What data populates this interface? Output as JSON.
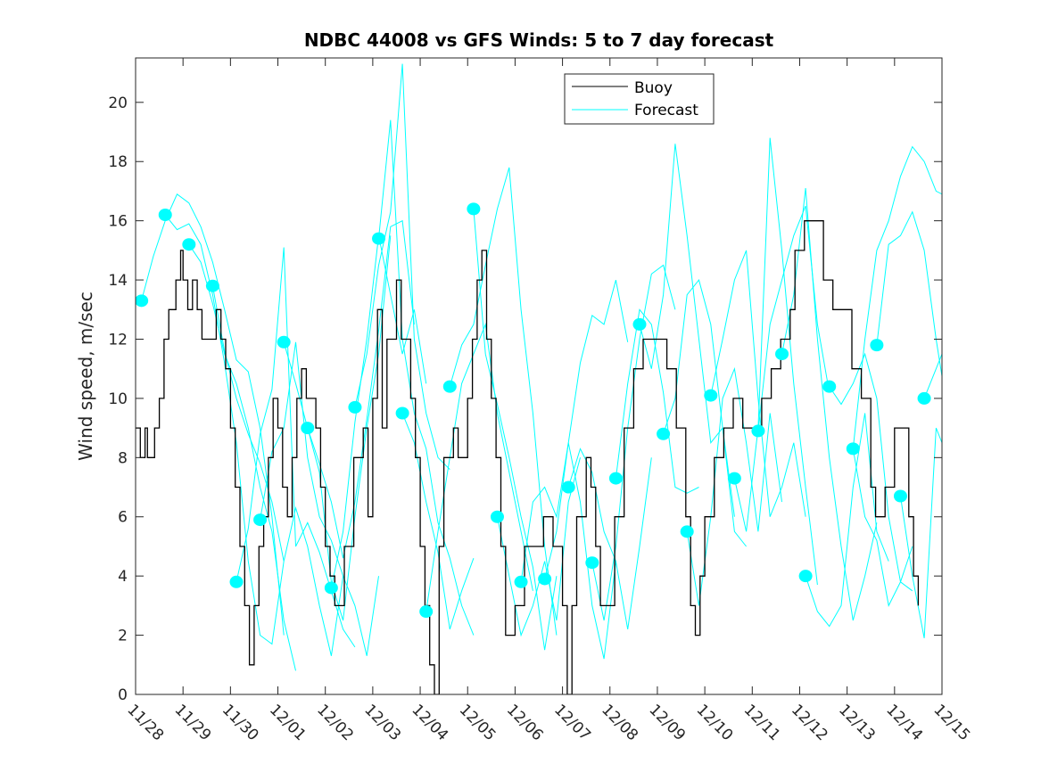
{
  "chart_data": {
    "type": "line",
    "title": "NDBC 44008 vs GFS Winds: 5 to 7 day forecast",
    "xlabel": "",
    "ylabel": "Wind speed, m/sec",
    "x_unit": "days since 11/28",
    "xlim": [
      0,
      17
    ],
    "ylim": [
      0,
      21.5
    ],
    "x_tick_labels": [
      "11/28",
      "11/29",
      "11/30",
      "12/01",
      "12/02",
      "12/03",
      "12/04",
      "12/05",
      "12/06",
      "12/07",
      "12/08",
      "12/09",
      "12/10",
      "12/11",
      "12/12",
      "12/13",
      "12/14",
      "12/15"
    ],
    "y_ticks": [
      0,
      2,
      4,
      6,
      8,
      10,
      12,
      14,
      16,
      18,
      20
    ],
    "grid": false,
    "legend": {
      "placement": "top-center",
      "entries": [
        "Buoy",
        "Forecast"
      ]
    },
    "colors": {
      "buoy": "#000000",
      "forecast": "#00ffff",
      "markers": "#00ffff",
      "axes": "#262626"
    },
    "buoy": {
      "x": [
        0,
        0.1,
        0.2,
        0.25,
        0.4,
        0.5,
        0.6,
        0.7,
        0.85,
        0.95,
        1.0,
        1.1,
        1.2,
        1.3,
        1.4,
        1.5,
        1.6,
        1.7,
        1.8,
        1.9,
        2.0,
        2.1,
        2.2,
        2.3,
        2.4,
        2.5,
        2.6,
        2.7,
        2.8,
        2.9,
        3.0,
        3.1,
        3.2,
        3.3,
        3.4,
        3.5,
        3.6,
        3.8,
        3.9,
        4.0,
        4.1,
        4.2,
        4.4,
        4.6,
        4.8,
        4.9,
        5.0,
        5.1,
        5.2,
        5.3,
        5.5,
        5.6,
        5.8,
        5.9,
        6.0,
        6.1,
        6.2,
        6.3,
        6.4,
        6.5,
        6.7,
        6.8,
        7.0,
        7.1,
        7.2,
        7.3,
        7.4,
        7.5,
        7.6,
        7.7,
        7.8,
        8.0,
        8.2,
        8.4,
        8.6,
        8.8,
        9.0,
        9.1,
        9.2,
        9.3,
        9.5,
        9.6,
        9.7,
        9.8,
        10.0,
        10.1,
        10.3,
        10.5,
        10.7,
        11.0,
        11.2,
        11.4,
        11.6,
        11.7,
        11.8,
        11.9,
        12.0,
        12.2,
        12.4,
        12.6,
        12.8,
        13.0,
        13.2,
        13.4,
        13.6,
        13.8,
        13.9,
        14.1,
        14.3,
        14.5,
        14.7,
        14.9,
        15.1,
        15.3,
        15.5,
        15.6,
        15.8,
        16.0,
        16.1,
        16.3,
        16.4,
        16.5
      ],
      "y": [
        9,
        8,
        9,
        8,
        9,
        10,
        12,
        13,
        14,
        15,
        14,
        13,
        14,
        13,
        12,
        12,
        12,
        13,
        12,
        11,
        9,
        7,
        5,
        3,
        1,
        3,
        5,
        6,
        8,
        10,
        9,
        7,
        6,
        8,
        10,
        11,
        10,
        9,
        7,
        5,
        4,
        3,
        5,
        8,
        9,
        6,
        10,
        13,
        9,
        12,
        14,
        12,
        10,
        8,
        5,
        3,
        1,
        0,
        5,
        8,
        9,
        8,
        10,
        12,
        14,
        15,
        12,
        10,
        8,
        5,
        2,
        3,
        5,
        5,
        6,
        5,
        3,
        0,
        3,
        6,
        8,
        7,
        5,
        3,
        3,
        6,
        9,
        11,
        12,
        12,
        11,
        9,
        6,
        3,
        2,
        4,
        6,
        8,
        9,
        10,
        9,
        9,
        10,
        11,
        12,
        13,
        15,
        16,
        16,
        14,
        13,
        13,
        11,
        10,
        7,
        6,
        7,
        9,
        9,
        6,
        4,
        3
      ]
    },
    "forecast_step_days": 0.25,
    "forecast_segments": [
      {
        "start": 0.125,
        "values": [
          13.3,
          14.8,
          16.0,
          16.9,
          16.6,
          15.8,
          14.6,
          13.0,
          11.3,
          10.9,
          9.0,
          6.0,
          2.0
        ]
      },
      {
        "start": 0.625,
        "values": [
          16.2,
          15.7,
          15.9,
          15.2,
          13.5,
          11.2,
          8.5,
          4.5,
          2.0,
          1.7,
          4.5
        ]
      },
      {
        "start": 1.125,
        "values": [
          15.2,
          14.6,
          13.2,
          11.5,
          10.5,
          9.0,
          7.0,
          5.5,
          2.5,
          0.8
        ]
      },
      {
        "start": 1.625,
        "values": [
          13.8,
          11.6,
          10.0,
          8.8,
          7.8,
          6.5,
          4.5,
          6.3,
          5.0,
          3.0,
          1.3,
          4.0
        ]
      },
      {
        "start": 2.125,
        "values": [
          3.8,
          5.6,
          8.8,
          10.3,
          15.1,
          5.0,
          5.8,
          4.8,
          3.5,
          2.2,
          1.6
        ]
      },
      {
        "start": 2.625,
        "values": [
          5.9,
          8.2,
          9.0,
          11.9,
          8.0,
          6.0,
          5.2,
          4.0,
          3.0,
          1.3,
          4.0
        ]
      },
      {
        "start": 3.125,
        "values": [
          11.9,
          10.5,
          9.0,
          7.5,
          3.8,
          2.5,
          6.0,
          9.0,
          11.5,
          15.5
        ]
      },
      {
        "start": 3.625,
        "values": [
          9.0,
          7.8,
          6.5,
          4.6,
          6.5,
          9.3,
          12.3,
          15.8,
          16.0,
          12.5
        ]
      },
      {
        "start": 4.125,
        "values": [
          3.6,
          5.5,
          9.2,
          12.0,
          15.5,
          13.5,
          11.5,
          13.0,
          10.5
        ]
      },
      {
        "start": 4.625,
        "values": [
          9.7,
          11.5,
          14.5,
          16.3,
          21.3,
          12.0,
          9.5,
          8.0,
          7.6
        ]
      },
      {
        "start": 5.125,
        "values": [
          15.4,
          19.4,
          12.0,
          9.5,
          8.3,
          5.8,
          4.6,
          3.0,
          2.0
        ]
      },
      {
        "start": 5.625,
        "values": [
          9.5,
          8.5,
          6.5,
          4.8,
          2.2,
          3.5,
          4.6
        ]
      },
      {
        "start": 6.125,
        "values": [
          2.8,
          5.5,
          8.0,
          10.5,
          11.5,
          12.5,
          9.5,
          7.5,
          5.5,
          3.5
        ]
      },
      {
        "start": 6.625,
        "values": [
          10.4,
          11.8,
          12.5,
          14.5,
          16.4,
          17.8,
          13.0,
          9.5,
          5.0,
          2.0
        ]
      },
      {
        "start": 7.125,
        "values": [
          16.4,
          11.5,
          9.8,
          8.0,
          6.0,
          4.3,
          1.5,
          4.0
        ]
      },
      {
        "start": 7.625,
        "values": [
          6.0,
          4.0,
          2.0,
          3.0,
          4.5,
          2.5,
          6.5,
          8.0
        ]
      },
      {
        "start": 8.125,
        "values": [
          3.8,
          6.5,
          7.0,
          6.0,
          8.5,
          11.2,
          12.8,
          12.5,
          14.0,
          11.9
        ]
      },
      {
        "start": 8.625,
        "values": [
          3.9,
          5.5,
          8.5,
          6.5,
          3.0,
          1.2,
          4.5
        ]
      },
      {
        "start": 9.125,
        "values": [
          7.0,
          8.3,
          7.5,
          5.5,
          4.5,
          2.2,
          5.0,
          8.0
        ]
      },
      {
        "start": 9.625,
        "values": [
          4.45,
          2.5,
          5.0,
          9.0,
          12.0,
          14.2,
          14.5,
          13.0
        ]
      },
      {
        "start": 10.125,
        "values": [
          7.3,
          10.5,
          13.0,
          12.5,
          10.2,
          7.0,
          6.8,
          7.0
        ]
      },
      {
        "start": 10.625,
        "values": [
          12.5,
          11.0,
          13.5,
          18.6,
          15.5,
          12.0,
          8.5,
          9.0,
          6.0
        ]
      },
      {
        "start": 11.125,
        "values": [
          8.8,
          10.0,
          13.5,
          14.0,
          12.5,
          9.0,
          5.5,
          5.0
        ]
      },
      {
        "start": 11.625,
        "values": [
          5.5,
          3.0,
          6.0,
          10.0,
          11.0,
          8.5,
          5.5,
          9.5,
          6.5
        ]
      },
      {
        "start": 12.125,
        "values": [
          10.1,
          12.0,
          14.0,
          15.0,
          10.0,
          6.0,
          7.0,
          8.5,
          6.0
        ]
      },
      {
        "start": 12.625,
        "values": [
          7.3,
          5.5,
          9.0,
          18.8,
          15.0,
          10.5,
          7.0,
          3.7
        ]
      },
      {
        "start": 13.125,
        "values": [
          8.9,
          12.5,
          14.0,
          15.5,
          16.5,
          12.5,
          10.2
        ]
      },
      {
        "start": 13.625,
        "values": [
          11.5,
          13.5,
          17.1,
          12.0,
          8.0,
          5.0,
          2.5,
          4.0,
          5.8
        ]
      },
      {
        "start": 14.125,
        "values": [
          4.0,
          2.8,
          2.3,
          3.0,
          7.0,
          9.5,
          5.5,
          4.5
        ]
      },
      {
        "start": 14.625,
        "values": [
          10.4,
          9.8,
          10.5,
          11.5,
          10.0,
          6.0,
          3.8,
          5.0
        ]
      },
      {
        "start": 15.125,
        "values": [
          8.3,
          6.0,
          5.2,
          3.0,
          3.8,
          3.5
        ]
      },
      {
        "start": 15.125,
        "values": [
          8.3,
          12.0,
          15.0,
          16.0,
          17.5,
          18.5,
          18.0,
          17.0,
          16.8,
          14.8
        ]
      },
      {
        "start": 15.625,
        "values": [
          11.8,
          15.2,
          15.5,
          16.3,
          15.0,
          12.0,
          9.5,
          2.5
        ]
      },
      {
        "start": 16.125,
        "values": [
          6.7,
          4.0,
          1.9,
          9.0,
          8.0,
          11.5,
          12.3
        ]
      },
      {
        "start": 16.625,
        "values": [
          10.0,
          11.0,
          12.0
        ]
      }
    ],
    "forecast_markers": {
      "x": [
        0.125,
        0.625,
        1.125,
        1.625,
        2.125,
        2.625,
        3.125,
        3.625,
        4.125,
        4.625,
        5.125,
        5.625,
        6.125,
        6.625,
        7.125,
        7.625,
        8.125,
        8.625,
        9.125,
        9.625,
        10.125,
        10.625,
        11.125,
        11.625,
        12.125,
        12.625,
        13.125,
        13.625,
        14.125,
        14.625,
        15.125,
        15.625,
        16.125,
        16.625
      ],
      "y": [
        13.3,
        16.2,
        15.2,
        13.8,
        3.8,
        5.9,
        11.9,
        9.0,
        3.6,
        9.7,
        15.4,
        9.5,
        2.8,
        10.4,
        16.4,
        6.0,
        3.8,
        3.9,
        7.0,
        4.45,
        7.3,
        12.5,
        8.8,
        5.5,
        10.1,
        7.3,
        8.9,
        11.5,
        4.0,
        10.4,
        8.3,
        11.8,
        6.7,
        10.0
      ]
    }
  }
}
